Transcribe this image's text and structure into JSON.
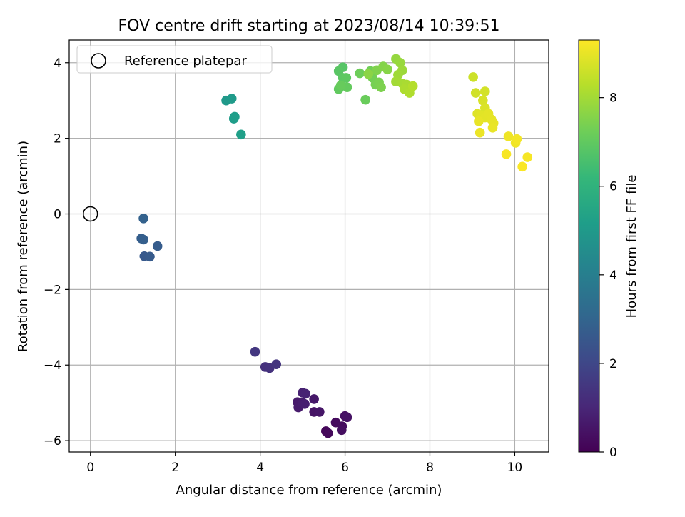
{
  "chart_data": {
    "type": "scatter",
    "title": "FOV centre drift starting at 2023/08/14 10:39:51",
    "xlabel": "Angular distance from reference (arcmin)",
    "ylabel": "Rotation from reference (arcmin)",
    "xlim": [
      -0.5,
      10.8
    ],
    "ylim": [
      -6.3,
      4.6
    ],
    "xticks": [
      0,
      2,
      4,
      6,
      8,
      10
    ],
    "yticks": [
      -6,
      -4,
      -2,
      0,
      2,
      4
    ],
    "grid": true,
    "legend": {
      "placement": "top-left",
      "entries": [
        "Reference platepar"
      ]
    },
    "reference_point": {
      "x": 0,
      "y": 0,
      "label": "Reference platepar"
    },
    "colorbar": {
      "label": "Hours from first FF file",
      "colormap": "viridis",
      "range": [
        0,
        9.3
      ],
      "ticks": [
        0,
        2,
        4,
        6,
        8
      ]
    },
    "points": [
      {
        "x": 5.55,
        "y": -5.75,
        "c": 0.15
      },
      {
        "x": 5.6,
        "y": -5.8,
        "c": 0.2
      },
      {
        "x": 5.78,
        "y": -5.52,
        "c": 0.25
      },
      {
        "x": 5.93,
        "y": -5.62,
        "c": 0.3
      },
      {
        "x": 5.92,
        "y": -5.72,
        "c": 0.35
      },
      {
        "x": 6.0,
        "y": -5.35,
        "c": 0.4
      },
      {
        "x": 6.05,
        "y": -5.38,
        "c": 0.45
      },
      {
        "x": 5.27,
        "y": -5.24,
        "c": 0.5
      },
      {
        "x": 5.4,
        "y": -5.24,
        "c": 0.55
      },
      {
        "x": 5.27,
        "y": -4.9,
        "c": 0.6
      },
      {
        "x": 4.88,
        "y": -4.98,
        "c": 0.65
      },
      {
        "x": 4.9,
        "y": -5.12,
        "c": 0.7
      },
      {
        "x": 5.0,
        "y": -5.0,
        "c": 0.75
      },
      {
        "x": 5.05,
        "y": -5.03,
        "c": 0.8
      },
      {
        "x": 5.0,
        "y": -4.73,
        "c": 0.85
      },
      {
        "x": 5.07,
        "y": -4.76,
        "c": 0.9
      },
      {
        "x": 4.12,
        "y": -4.05,
        "c": 1.3
      },
      {
        "x": 4.22,
        "y": -4.08,
        "c": 1.35
      },
      {
        "x": 4.38,
        "y": -3.98,
        "c": 1.4
      },
      {
        "x": 3.88,
        "y": -3.65,
        "c": 1.5
      },
      {
        "x": 1.27,
        "y": -1.12,
        "c": 2.6
      },
      {
        "x": 1.4,
        "y": -1.13,
        "c": 2.65
      },
      {
        "x": 1.58,
        "y": -0.85,
        "c": 2.7
      },
      {
        "x": 1.2,
        "y": -0.65,
        "c": 2.75
      },
      {
        "x": 1.25,
        "y": -0.68,
        "c": 2.8
      },
      {
        "x": 1.25,
        "y": -0.12,
        "c": 2.9
      },
      {
        "x": 3.2,
        "y": 3.0,
        "c": 5.0
      },
      {
        "x": 3.33,
        "y": 3.05,
        "c": 5.05
      },
      {
        "x": 3.38,
        "y": 2.52,
        "c": 5.1
      },
      {
        "x": 3.4,
        "y": 2.57,
        "c": 5.15
      },
      {
        "x": 3.55,
        "y": 2.1,
        "c": 5.2
      },
      {
        "x": 5.95,
        "y": 3.88,
        "c": 6.8
      },
      {
        "x": 5.85,
        "y": 3.78,
        "c": 6.85
      },
      {
        "x": 5.95,
        "y": 3.6,
        "c": 6.9
      },
      {
        "x": 6.03,
        "y": 3.6,
        "c": 6.95
      },
      {
        "x": 5.85,
        "y": 3.3,
        "c": 7.0
      },
      {
        "x": 6.05,
        "y": 3.35,
        "c": 7.05
      },
      {
        "x": 5.9,
        "y": 3.4,
        "c": 7.1
      },
      {
        "x": 6.48,
        "y": 3.02,
        "c": 7.15
      },
      {
        "x": 6.35,
        "y": 3.72,
        "c": 7.2
      },
      {
        "x": 6.6,
        "y": 3.78,
        "c": 7.25
      },
      {
        "x": 6.65,
        "y": 3.6,
        "c": 7.3
      },
      {
        "x": 6.72,
        "y": 3.42,
        "c": 7.35
      },
      {
        "x": 6.8,
        "y": 3.48,
        "c": 7.4
      },
      {
        "x": 6.85,
        "y": 3.35,
        "c": 7.45
      },
      {
        "x": 6.75,
        "y": 3.8,
        "c": 7.5
      },
      {
        "x": 6.9,
        "y": 3.9,
        "c": 7.55
      },
      {
        "x": 7.0,
        "y": 3.82,
        "c": 7.6
      },
      {
        "x": 6.55,
        "y": 3.7,
        "c": 7.65
      },
      {
        "x": 7.2,
        "y": 4.1,
        "c": 7.8
      },
      {
        "x": 7.3,
        "y": 4.0,
        "c": 7.85
      },
      {
        "x": 7.35,
        "y": 3.8,
        "c": 7.9
      },
      {
        "x": 7.25,
        "y": 3.68,
        "c": 7.95
      },
      {
        "x": 7.2,
        "y": 3.5,
        "c": 8.0
      },
      {
        "x": 7.35,
        "y": 3.45,
        "c": 8.05
      },
      {
        "x": 7.45,
        "y": 3.42,
        "c": 8.1
      },
      {
        "x": 7.4,
        "y": 3.3,
        "c": 8.15
      },
      {
        "x": 7.52,
        "y": 3.2,
        "c": 8.2
      },
      {
        "x": 7.6,
        "y": 3.38,
        "c": 8.25
      },
      {
        "x": 9.02,
        "y": 3.62,
        "c": 8.6
      },
      {
        "x": 9.08,
        "y": 3.2,
        "c": 8.65
      },
      {
        "x": 9.3,
        "y": 3.24,
        "c": 8.7
      },
      {
        "x": 9.25,
        "y": 3.0,
        "c": 8.75
      },
      {
        "x": 9.3,
        "y": 2.8,
        "c": 8.8
      },
      {
        "x": 9.12,
        "y": 2.65,
        "c": 8.85
      },
      {
        "x": 9.2,
        "y": 2.6,
        "c": 8.9
      },
      {
        "x": 9.3,
        "y": 2.55,
        "c": 8.92
      },
      {
        "x": 9.38,
        "y": 2.65,
        "c": 8.94
      },
      {
        "x": 9.45,
        "y": 2.5,
        "c": 8.96
      },
      {
        "x": 9.5,
        "y": 2.4,
        "c": 8.98
      },
      {
        "x": 9.15,
        "y": 2.45,
        "c": 9.0
      },
      {
        "x": 9.48,
        "y": 2.28,
        "c": 9.02
      },
      {
        "x": 9.18,
        "y": 2.15,
        "c": 9.05
      },
      {
        "x": 9.85,
        "y": 2.05,
        "c": 9.1
      },
      {
        "x": 10.02,
        "y": 1.88,
        "c": 9.12
      },
      {
        "x": 10.05,
        "y": 1.98,
        "c": 9.15
      },
      {
        "x": 10.3,
        "y": 1.5,
        "c": 9.2
      },
      {
        "x": 9.8,
        "y": 1.58,
        "c": 9.22
      },
      {
        "x": 10.18,
        "y": 1.25,
        "c": 9.25
      }
    ]
  }
}
